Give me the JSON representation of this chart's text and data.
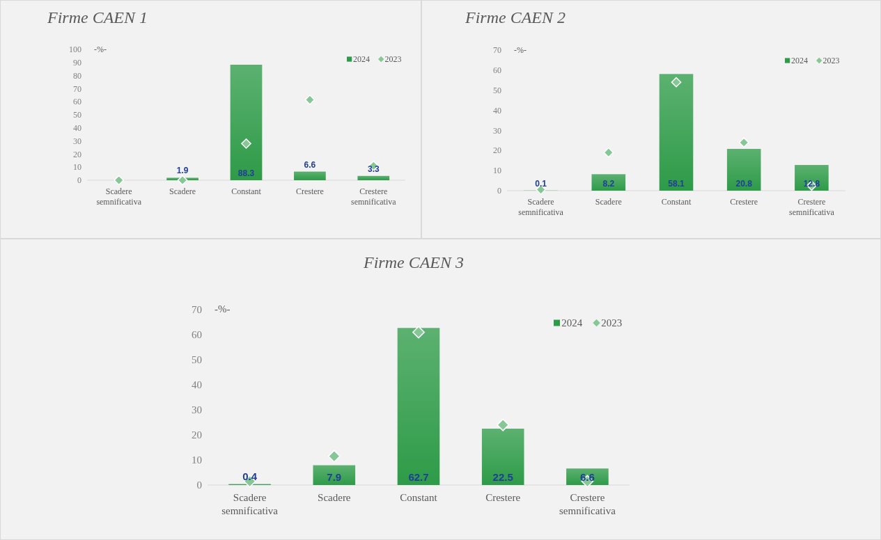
{
  "chart_data": [
    {
      "type": "bar",
      "title": "Firme CAEN 1",
      "ylabel": "-%-",
      "categories": [
        "Scadere semnificativa",
        "Scadere",
        "Constant",
        "Crestere",
        "Crestere semnificativa"
      ],
      "ylim": [
        0,
        100
      ],
      "yticks": [
        0,
        10,
        20,
        30,
        40,
        50,
        60,
        70,
        80,
        90,
        100
      ],
      "legend": "top right",
      "grid": false,
      "series": [
        {
          "name": "2024",
          "color": "#2e9b48",
          "values": [
            0,
            1.9,
            88.3,
            6.6,
            3.3
          ],
          "value_labels": [
            null,
            "1.9",
            "88.3",
            "6.6",
            "3.3"
          ]
        },
        {
          "name": "2023",
          "type": "scatter",
          "marker": "diamond",
          "color": "#86c795",
          "values": [
            0,
            0,
            28,
            61.5,
            11
          ]
        }
      ]
    },
    {
      "type": "bar",
      "title": "Firme CAEN 2",
      "ylabel": "-%-",
      "categories": [
        "Scadere semnificativa",
        "Scadere",
        "Constant",
        "Crestere",
        "Crestere semnificativa"
      ],
      "ylim": [
        0,
        70
      ],
      "yticks": [
        0,
        10,
        20,
        30,
        40,
        50,
        60,
        70
      ],
      "legend": "top right",
      "grid": false,
      "series": [
        {
          "name": "2024",
          "color": "#2e9b48",
          "values": [
            0.1,
            8.2,
            58.1,
            20.8,
            12.8
          ],
          "value_labels": [
            "0.1",
            "8.2",
            "58.1",
            "20.8",
            "12.8"
          ]
        },
        {
          "name": "2023",
          "type": "scatter",
          "marker": "diamond",
          "color": "#86c795",
          "values": [
            0.5,
            19,
            54,
            24,
            2.5
          ]
        }
      ]
    },
    {
      "type": "bar",
      "title": "Firme CAEN 3",
      "ylabel": "-%-",
      "categories": [
        "Scadere semnificativa",
        "Scadere",
        "Constant",
        "Crestere",
        "Crestere semnificativa"
      ],
      "ylim": [
        0,
        70
      ],
      "yticks": [
        0,
        10,
        20,
        30,
        40,
        50,
        60,
        70
      ],
      "legend": "top right",
      "grid": false,
      "series": [
        {
          "name": "2024",
          "color": "#2e9b48",
          "values": [
            0.4,
            7.9,
            62.7,
            22.5,
            6.6
          ],
          "value_labels": [
            "0.4",
            "7.9",
            "62.7",
            "22.5",
            "6.6"
          ]
        },
        {
          "name": "2023",
          "type": "scatter",
          "marker": "diamond",
          "color": "#86c795",
          "values": [
            1.5,
            11.5,
            61,
            24,
            1.5
          ]
        }
      ]
    }
  ]
}
